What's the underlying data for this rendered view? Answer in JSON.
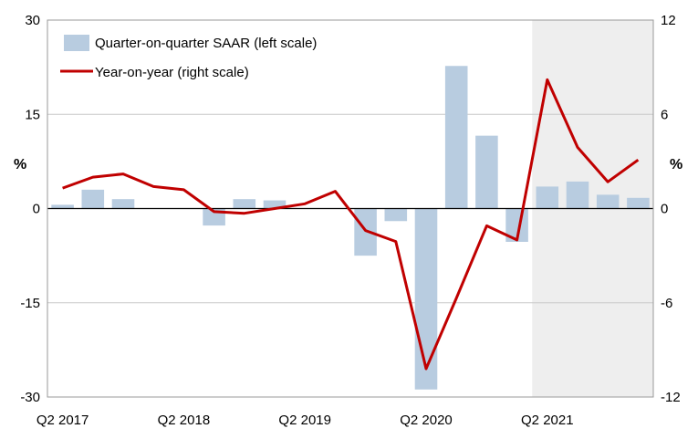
{
  "chart_data": {
    "type": "bar+line",
    "x": [
      "Q2 2017",
      "Q3 2017",
      "Q4 2017",
      "Q1 2018",
      "Q2 2018",
      "Q3 2018",
      "Q4 2018",
      "Q1 2019",
      "Q2 2019",
      "Q3 2019",
      "Q4 2019",
      "Q1 2020",
      "Q2 2020",
      "Q3 2020",
      "Q4 2020",
      "Q1 2021",
      "Q2 2021",
      "Q3 2021",
      "Q4 2021",
      "Q1 2022"
    ],
    "x_tick_labels": [
      "Q2 2017",
      "Q2 2018",
      "Q2 2019",
      "Q2 2020",
      "Q2 2021"
    ],
    "series": [
      {
        "name": "Quarter-on-quarter SAAR (left scale)",
        "type": "bar",
        "axis": "left",
        "color": "#b8cce0",
        "values": [
          0.6,
          3.0,
          1.5,
          0.0,
          0.0,
          -2.7,
          1.5,
          1.3,
          0.0,
          0.0,
          -7.5,
          -2.0,
          -28.8,
          22.7,
          11.6,
          -5.3,
          3.5,
          4.3,
          2.2,
          1.7
        ]
      },
      {
        "name": "Year-on-year (right scale)",
        "type": "line",
        "axis": "right",
        "color": "#c00000",
        "values": [
          1.3,
          2.0,
          2.2,
          1.4,
          1.2,
          -0.2,
          -0.3,
          0.0,
          0.3,
          1.1,
          -1.4,
          -2.1,
          -10.2,
          -5.7,
          -1.1,
          -2.0,
          8.2,
          3.9,
          1.7,
          3.1
        ]
      }
    ],
    "y_left": {
      "range": [
        -30,
        30
      ],
      "ticks": [
        "30",
        "15",
        "0",
        "-15",
        "-30"
      ],
      "label": "%"
    },
    "y_right": {
      "range": [
        -12,
        12
      ],
      "ticks": [
        "12",
        "6",
        "0",
        "-6",
        "-12"
      ],
      "label": "%"
    },
    "forecast_shade_start": "Q2 2021",
    "shade_color": "#eeeeee",
    "legend_position": "top-left",
    "grid": "horizontal"
  }
}
